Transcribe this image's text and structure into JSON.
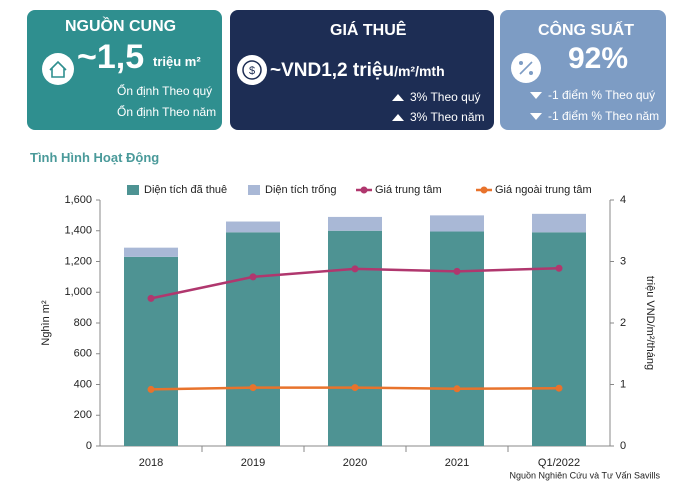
{
  "cards": [
    {
      "title": "NGUỒN CUNG",
      "value": "~1,5",
      "unit": "triệu m²",
      "lines": [
        "Ổn định  Theo quý",
        "Ổn định  Theo năm"
      ]
    },
    {
      "title": "GIÁ THUÊ",
      "value": "~VND1,2 triệu",
      "unit": "/m²/mth",
      "lines": [
        "3%  Theo quý",
        "3% Theo năm"
      ]
    },
    {
      "title": "CÔNG SUẤT",
      "value": "92%",
      "lines": [
        "-1 điểm % Theo quý",
        "-1 điểm % Theo năm"
      ]
    }
  ],
  "section_title": "Tình Hình Hoạt Động",
  "chart_data": {
    "type": "combo",
    "categories": [
      "2018",
      "2019",
      "2020",
      "2021",
      "Q1/2022"
    ],
    "series": [
      {
        "name": "Diện tích đã thuê",
        "type": "bar",
        "color": "#4e9393",
        "values": [
          1230,
          1390,
          1400,
          1395,
          1390
        ]
      },
      {
        "name": "Diện tích trống",
        "type": "bar",
        "color": "#a9b8d6",
        "values": [
          60,
          70,
          90,
          105,
          120
        ]
      },
      {
        "name": "Giá trung tâm",
        "type": "line",
        "axis": "y2",
        "color": "#b0376e",
        "values": [
          2.4,
          2.75,
          2.88,
          2.84,
          2.89
        ]
      },
      {
        "name": "Giá ngoài trung tâm",
        "type": "line",
        "axis": "y2",
        "color": "#e8732c",
        "values": [
          0.92,
          0.95,
          0.95,
          0.93,
          0.94
        ]
      }
    ],
    "ylabel": "Nghìn m²",
    "y2label": "triệu VND/m²/tháng",
    "ylim": [
      0,
      1600
    ],
    "yticks": [
      0,
      200,
      400,
      600,
      800,
      {
        "value": 1000,
        "label": "1,000"
      },
      {
        "value": 1200,
        "label": "1,200"
      },
      {
        "value": 1400,
        "label": "1,400"
      },
      {
        "value": 1600,
        "label": "1,600"
      }
    ],
    "y2lim": [
      0,
      4
    ],
    "y2ticks": [
      0,
      1,
      2,
      3,
      4
    ],
    "source": "Nguồn Nghiên Cứu và Tư Vấn Savills"
  }
}
